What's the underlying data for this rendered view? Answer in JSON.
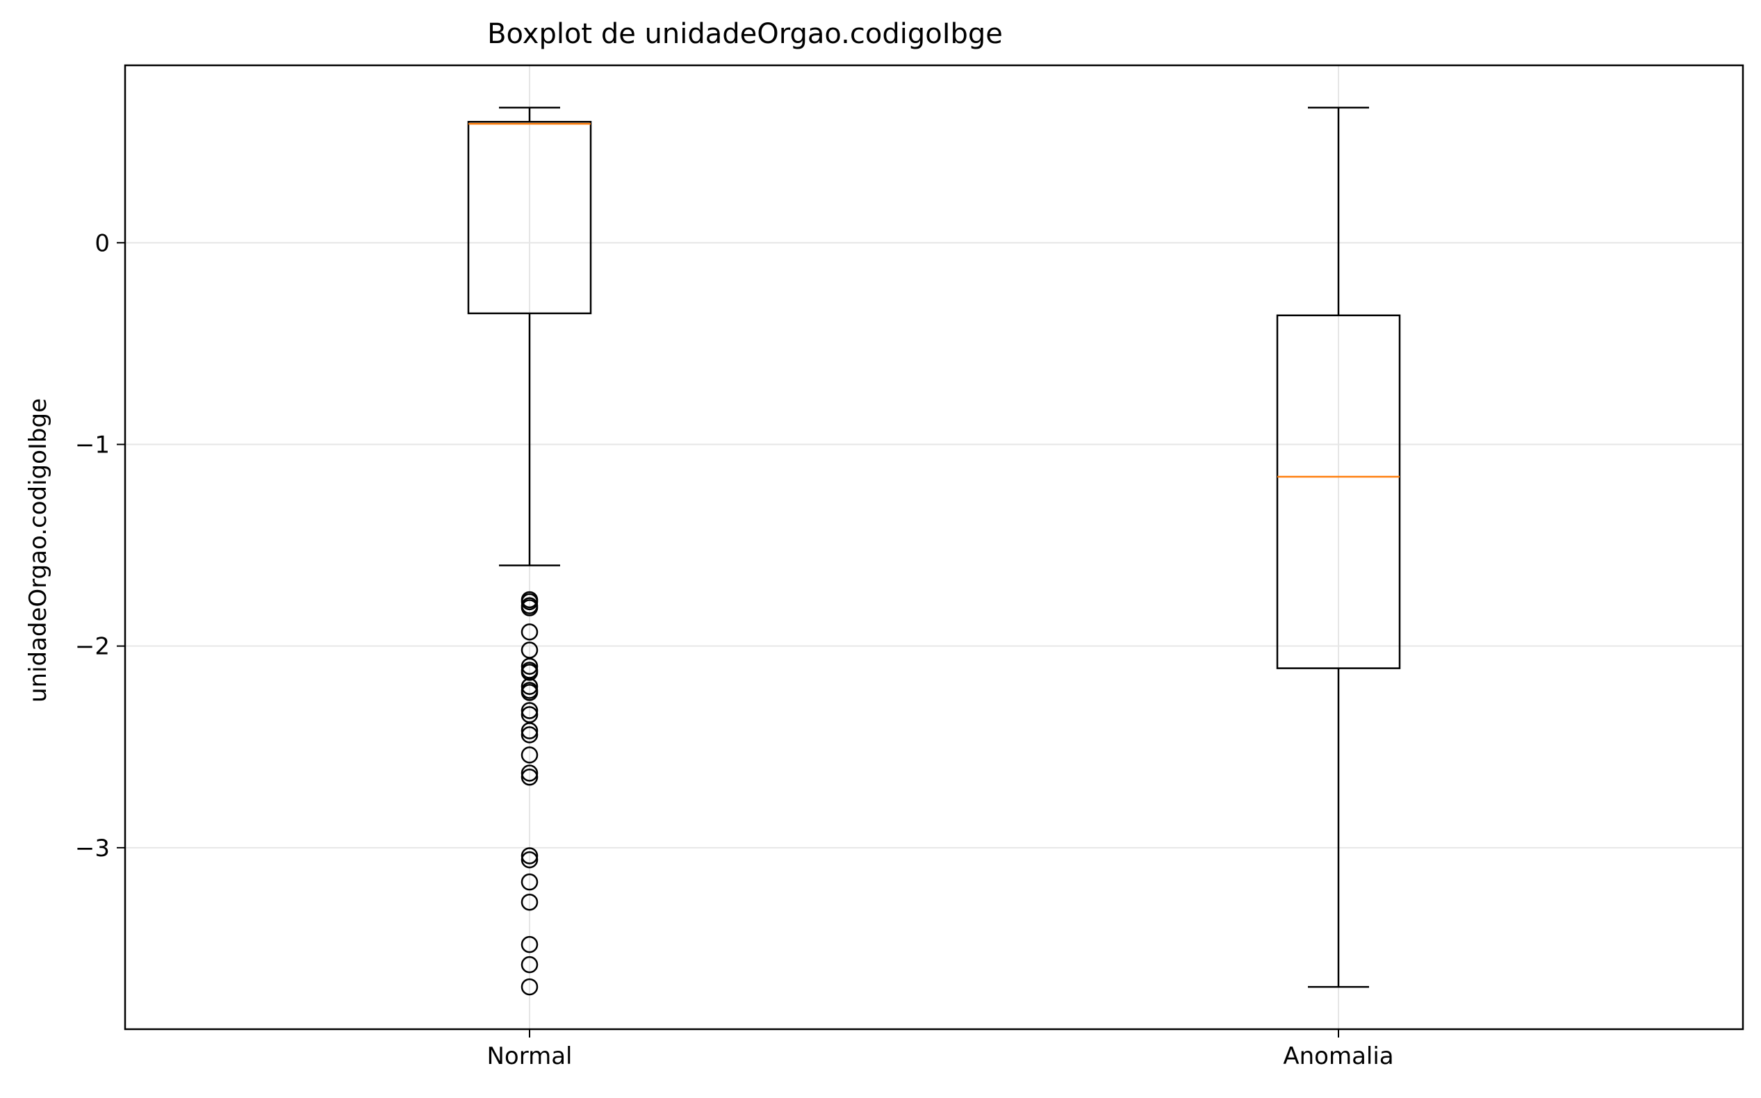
{
  "chart_data": {
    "type": "boxplot",
    "title": "Boxplot de unidadeOrgao.codigoIbge",
    "xlabel": "",
    "ylabel": "unidadeOrgao.codigoIbge",
    "categories": [
      "Normal",
      "Anomalia"
    ],
    "ylim": [
      -3.9,
      0.88
    ],
    "yticks": [
      0,
      -1,
      -2,
      -3
    ],
    "ytick_labels": [
      "0",
      "−1",
      "−2",
      "−3"
    ],
    "grid": true,
    "legend": "none",
    "boxes": [
      {
        "name": "Normal",
        "whisker_low": -1.6,
        "q1": -0.35,
        "median": 0.59,
        "q3": 0.6,
        "whisker_high": 0.67,
        "outliers": [
          -1.77,
          -1.78,
          -1.8,
          -1.81,
          -1.93,
          -2.02,
          -2.1,
          -2.12,
          -2.13,
          -2.2,
          -2.22,
          -2.23,
          -2.32,
          -2.34,
          -2.42,
          -2.44,
          -2.54,
          -2.63,
          -2.65,
          -3.04,
          -3.06,
          -3.17,
          -3.27,
          -3.48,
          -3.58,
          -3.69
        ]
      },
      {
        "name": "Anomalia",
        "whisker_low": -3.69,
        "q1": -2.11,
        "median": -1.16,
        "q3": -0.36,
        "whisker_high": 0.67,
        "outliers": []
      }
    ],
    "colors": {
      "box": "#000000",
      "median": "#ff7f0e",
      "grid": "#e6e6e6",
      "outlier_edge": "#000000"
    }
  }
}
